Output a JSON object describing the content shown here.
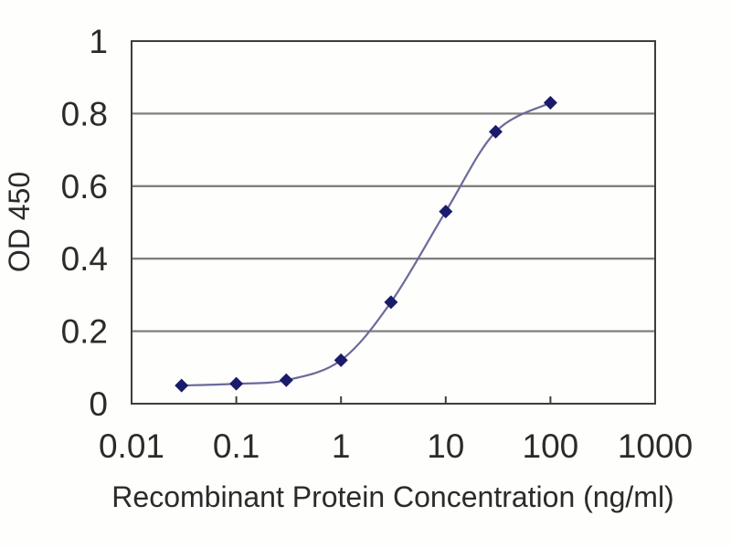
{
  "chart_data": {
    "type": "line",
    "title": "",
    "x": [
      0.03,
      0.1,
      0.3,
      1,
      3,
      10,
      30,
      100
    ],
    "y": [
      0.05,
      0.055,
      0.065,
      0.12,
      0.28,
      0.53,
      0.75,
      0.83
    ],
    "xlabel": "Recombinant Protein Concentration (ng/ml)",
    "ylabel": "OD 450",
    "x_scale": "log",
    "y_scale": "linear",
    "xlim": [
      0.01,
      1000
    ],
    "ylim": [
      0,
      1
    ],
    "x_ticks": [
      0.01,
      0.1,
      1,
      10,
      100,
      1000
    ],
    "x_tick_labels": [
      "0.01",
      "0.1",
      "1",
      "10",
      "100",
      "1000"
    ],
    "y_ticks": [
      0,
      0.2,
      0.4,
      0.6,
      0.8,
      1
    ],
    "y_tick_labels": [
      "0",
      "0.2",
      "0.4",
      "0.6",
      "0.8",
      "1"
    ],
    "grid": "horizontal",
    "legend": "none",
    "marker_shape": "diamond",
    "colors": {
      "line": "#6a6a9c",
      "marker": "#1b1b6b",
      "grid": "#7f7f7f",
      "axis": "#3d3d3d",
      "text": "#2b2b2b",
      "background": "#fefefc"
    }
  }
}
